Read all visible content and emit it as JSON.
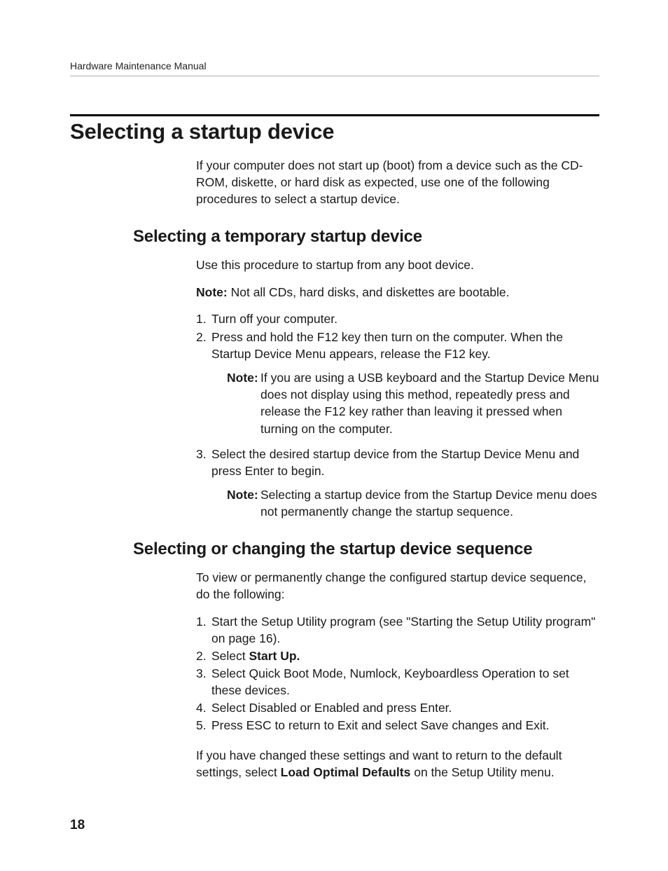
{
  "runningHead": "Hardware Maintenance Manual",
  "pageNumber": "18",
  "h1": "Selecting a startup device",
  "intro": "If your computer does not start up (boot) from a device such as the CD-ROM, diskette, or hard disk as expected, use one of the following procedures to select a startup device.",
  "sub1": {
    "title": "Selecting a temporary startup device",
    "lead": "Use this procedure to startup from any boot device.",
    "noteLabel": "Note:",
    "noteText": "Not all CDs, hard disks, and diskettes are bootable.",
    "step1": "Turn off your computer.",
    "step2": "Press and hold the F12 key then turn on the computer. When the Startup Device Menu appears, release the F12 key.",
    "step2noteLabel": "Note:",
    "step2note": "If you are using a USB keyboard and the Startup Device Menu does not display using this method, repeatedly press and release the F12 key rather than leaving it pressed when turning on the computer.",
    "step3": "Select the desired startup device from the Startup Device Menu and press Enter to begin.",
    "step3noteLabel": "Note:",
    "step3note": "Selecting a startup device from the Startup Device menu does not permanently change the startup sequence."
  },
  "sub2": {
    "title": "Selecting or changing the startup device sequence",
    "lead": "To view or permanently change the configured startup device sequence, do the following:",
    "step1": "Start the Setup Utility program (see \"Starting the Setup Utility program\" on page 16).",
    "step2pre": "Select ",
    "step2bold": "Start Up.",
    "step3": "Select Quick Boot Mode, Numlock, Keyboardless Operation to set these devices.",
    "step4": "Select Disabled or Enabled and press Enter.",
    "step5": "Press ESC to return to Exit and select Save changes and Exit.",
    "tailPre": "If you have changed these settings and want to return to the default settings, select ",
    "tailBold": "Load Optimal Defaults",
    "tailPost": " on the Setup Utility menu."
  }
}
